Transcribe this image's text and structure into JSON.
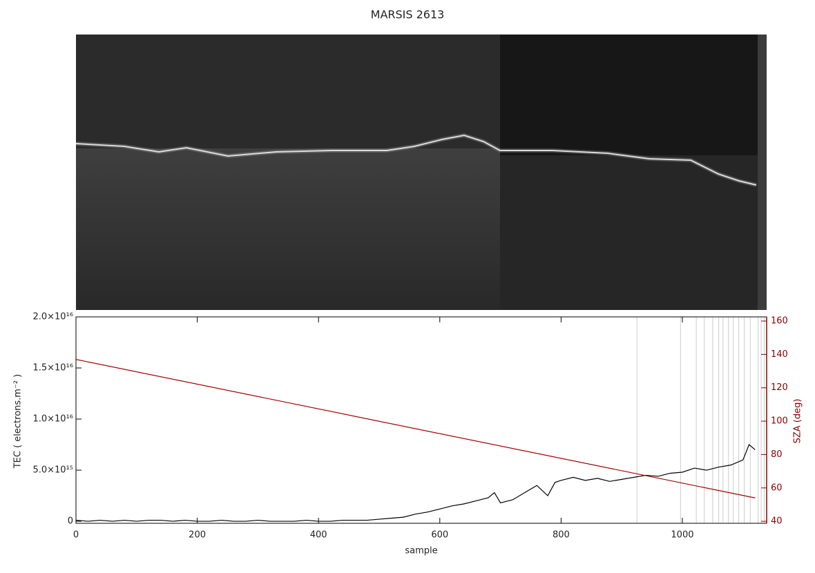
{
  "chart_data": {
    "type": "line",
    "title": "MARSIS 2613",
    "xlabel": "sample",
    "ylabel": "TEC ( electrons.m⁻² )",
    "y2label": "SZA (deg)",
    "xlim": [
      0,
      1139
    ],
    "xticks": [
      0,
      200,
      400,
      600,
      800,
      1000
    ],
    "ylim": [
      -200000000000000.0,
      2e+16
    ],
    "yticks": [
      {
        "value": 0,
        "label": "0"
      },
      {
        "value": 5000000000000000.0,
        "label": "5.0×10¹⁵"
      },
      {
        "value": 1e+16,
        "label": "1.0×10¹⁶"
      },
      {
        "value": 1.5e+16,
        "label": "1.5×10¹⁶"
      },
      {
        "value": 2e+16,
        "label": "2.0×10¹⁶"
      }
    ],
    "y2lim": [
      38.8,
      162.5
    ],
    "y2ticks": [
      40,
      60,
      80,
      100,
      120,
      140,
      160
    ],
    "y2color": "#8b0000",
    "vlines": [
      925,
      997,
      1023,
      1036,
      1050,
      1060,
      1067,
      1076,
      1084,
      1093,
      1102,
      1112,
      1125,
      1130,
      1135
    ],
    "vline_color": "#cccccc",
    "series": [
      {
        "color": "#000000",
        "x": [
          0,
          20,
          40,
          60,
          80,
          100,
          120,
          140,
          160,
          180,
          200,
          220,
          240,
          260,
          280,
          300,
          320,
          340,
          360,
          380,
          400,
          420,
          440,
          460,
          480,
          500,
          520,
          540,
          560,
          580,
          600,
          620,
          640,
          660,
          680,
          690,
          700,
          720,
          740,
          760,
          778,
          790,
          800,
          820,
          840,
          860,
          880,
          900,
          920,
          940,
          960,
          980,
          1000,
          1020,
          1040,
          1060,
          1080,
          1100,
          1110,
          1120
        ],
        "values": [
          100000000000000.0,
          0,
          100000000000000.0,
          0,
          100000000000000.0,
          0,
          100000000000000.0,
          100000000000000.0,
          0,
          100000000000000.0,
          0,
          0,
          100000000000000.0,
          0,
          0,
          100000000000000.0,
          0,
          0,
          0,
          100000000000000.0,
          0,
          0,
          100000000000000.0,
          100000000000000.0,
          100000000000000.0,
          200000000000000.0,
          300000000000000.0,
          400000000000000.0,
          700000000000000.0,
          900000000000000.0,
          1200000000000000.0,
          1500000000000000.0,
          1700000000000000.0,
          2000000000000000.0,
          2300000000000000.0,
          2800000000000000.0,
          1800000000000000.0,
          2100000000000000.0,
          2800000000000000.0,
          3500000000000000.0,
          2500000000000000.0,
          3800000000000000.0,
          4000000000000000.0,
          4300000000000000.0,
          4000000000000000.0,
          4200000000000000.0,
          3900000000000000.0,
          4100000000000000.0,
          4300000000000000.0,
          4500000000000000.0,
          4400000000000000.0,
          4700000000000000.0,
          4800000000000000.0,
          5200000000000000.0,
          5000000000000000.0,
          5300000000000000.0,
          5500000000000000.0,
          6000000000000000.0,
          7500000000000000.0,
          7000000000000000.0
        ]
      },
      {
        "color": "#a00000",
        "axis": "y2",
        "x": [
          0,
          1120
        ],
        "values": [
          137,
          54
        ]
      }
    ]
  }
}
